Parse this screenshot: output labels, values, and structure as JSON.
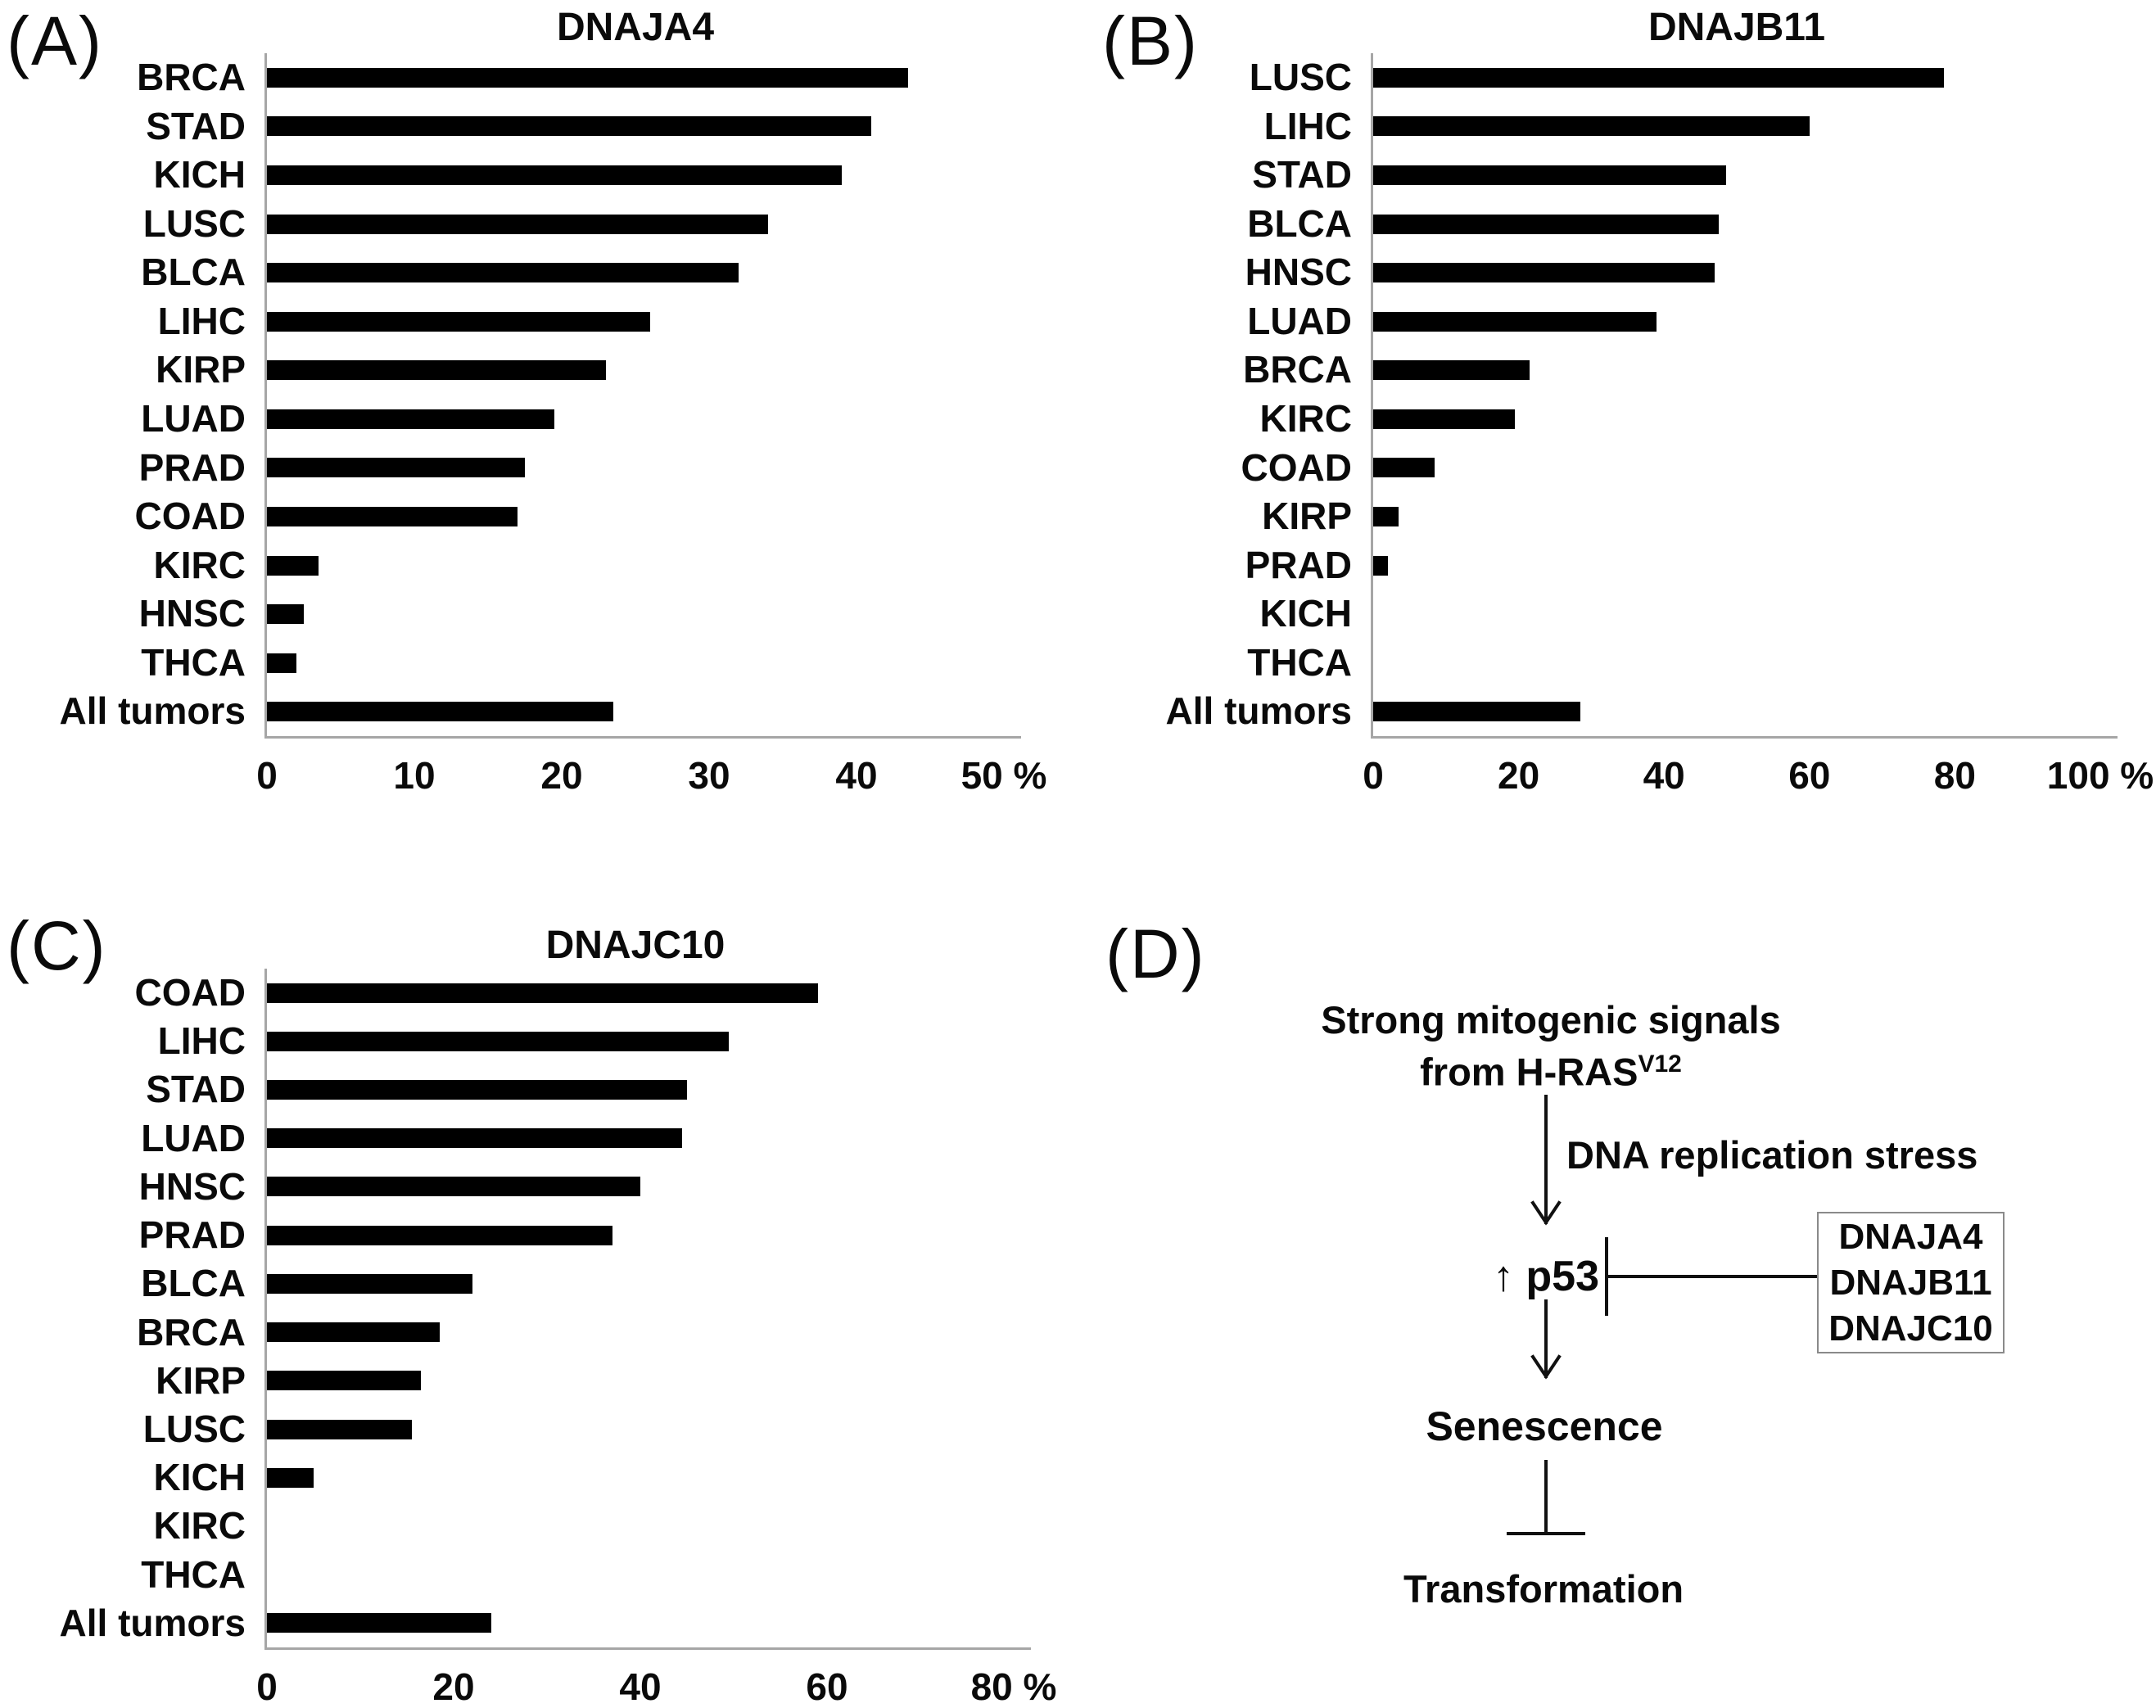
{
  "chart_data": [
    {
      "type": "bar",
      "orientation": "horizontal",
      "panel_letter": "(A)",
      "title": "DNAJA4",
      "unit": "%",
      "categories": [
        "BRCA",
        "STAD",
        "KICH",
        "LUSC",
        "BLCA",
        "LIHC",
        "KIRP",
        "LUAD",
        "PRAD",
        "COAD",
        "KIRC",
        "HNSC",
        "THCA",
        "All tumors"
      ],
      "values": [
        43.5,
        41,
        39,
        34,
        32,
        26,
        23,
        19.5,
        17.5,
        17,
        3.5,
        2.5,
        2,
        23.5
      ],
      "xlim": [
        0,
        50
      ],
      "ticks": [
        {
          "v": 0,
          "label": "0"
        },
        {
          "v": 10,
          "label": "10"
        },
        {
          "v": 20,
          "label": "20"
        },
        {
          "v": 30,
          "label": "30"
        },
        {
          "v": 40,
          "label": "40"
        },
        {
          "v": 50,
          "label": "50 %"
        }
      ],
      "bar_color": "#000000",
      "axis_color": "#a6a6a6",
      "grid": false,
      "legend": null
    },
    {
      "type": "bar",
      "orientation": "horizontal",
      "panel_letter": "(B)",
      "title": "DNAJB11",
      "unit": "%",
      "categories": [
        "LUSC",
        "LIHC",
        "STAD",
        "BLCA",
        "HNSC",
        "LUAD",
        "BRCA",
        "KIRC",
        "COAD",
        "KIRP",
        "PRAD",
        "KICH",
        "THCA",
        "All tumors"
      ],
      "values": [
        78.5,
        60,
        48.5,
        47.5,
        47,
        39,
        21.5,
        19.5,
        8.5,
        3.5,
        2,
        0,
        0,
        28.5
      ],
      "xlim": [
        0,
        100
      ],
      "ticks": [
        {
          "v": 0,
          "label": "0"
        },
        {
          "v": 20,
          "label": "20"
        },
        {
          "v": 40,
          "label": "40"
        },
        {
          "v": 60,
          "label": "60"
        },
        {
          "v": 80,
          "label": "80"
        },
        {
          "v": 100,
          "label": "100 %"
        }
      ],
      "bar_color": "#000000",
      "axis_color": "#a6a6a6",
      "grid": false,
      "legend": null
    },
    {
      "type": "bar",
      "orientation": "horizontal",
      "panel_letter": "(C)",
      "title": "DNAJC10",
      "unit": "%",
      "categories": [
        "COAD",
        "LIHC",
        "STAD",
        "LUAD",
        "HNSC",
        "PRAD",
        "BLCA",
        "BRCA",
        "KIRP",
        "LUSC",
        "KICH",
        "KIRC",
        "THCA",
        "All tumors"
      ],
      "values": [
        59,
        49.5,
        45,
        44.5,
        40,
        37,
        22,
        18.5,
        16.5,
        15.5,
        5,
        0,
        0,
        24
      ],
      "xlim": [
        0,
        80
      ],
      "ticks": [
        {
          "v": 0,
          "label": "0"
        },
        {
          "v": 20,
          "label": "20"
        },
        {
          "v": 40,
          "label": "40"
        },
        {
          "v": 60,
          "label": "60"
        },
        {
          "v": 80,
          "label": "80 %"
        }
      ],
      "bar_color": "#000000",
      "axis_color": "#a6a6a6",
      "grid": false,
      "legend": null
    }
  ],
  "diagram": {
    "panel_letter": "(D)",
    "signals_line1": "Strong mitogenic signals",
    "signals_line2": "from H-RAS",
    "signals_sup": "V12",
    "stress_label": "DNA replication stress",
    "p53_up": "↑",
    "p53_label": "p53",
    "box_genes": [
      "DNAJA4",
      "DNAJB11",
      "DNAJC10"
    ],
    "senescence_label": "Senescence",
    "transformation_label": "Transformation",
    "line_color": "#111111",
    "box_border_color": "#8a8a8a"
  }
}
